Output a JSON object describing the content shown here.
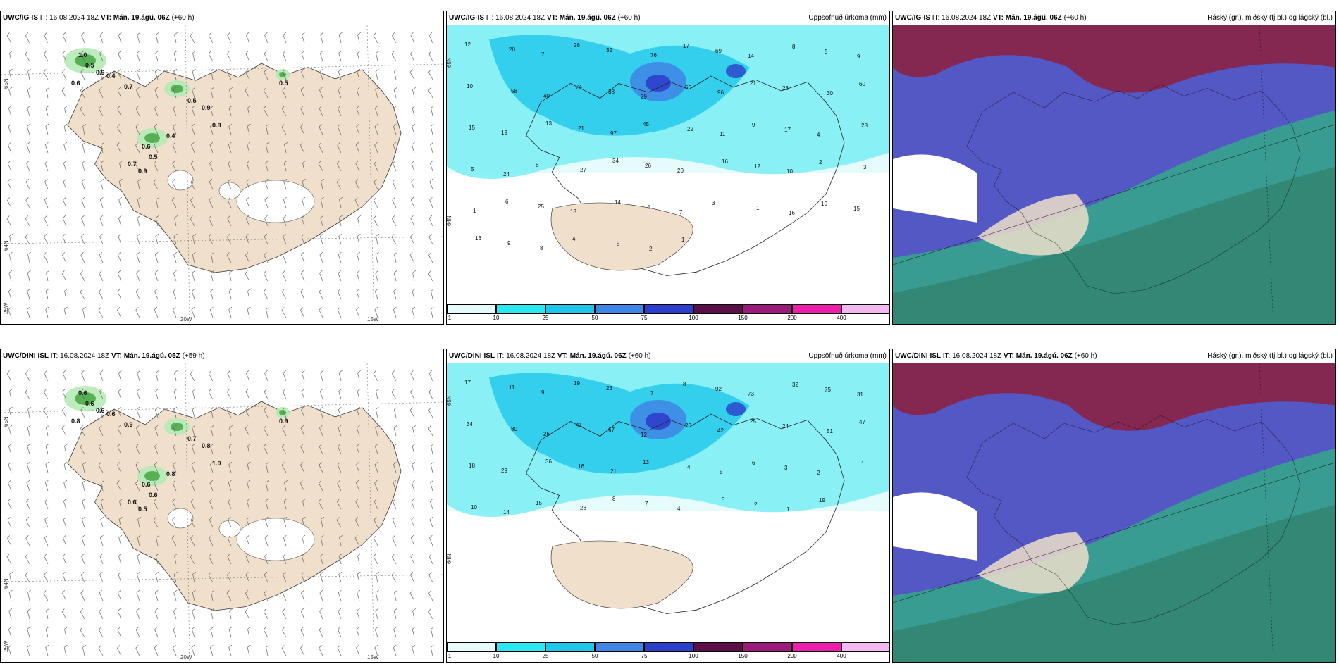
{
  "panels": [
    {
      "id": "top-left",
      "model": "UWC/IG-IS",
      "it_label": "IT:",
      "it_value": "16.08.2024 18Z",
      "vt_label": "VT:",
      "vt_value": "Mán. 19.ágú. 06Z",
      "lead": "(+60 h)",
      "right_title": "",
      "values": [
        "1.0",
        "0.5",
        "0.9",
        "0.6",
        "0.4",
        "0.7",
        "0.5",
        "0.9",
        "0.8",
        "0.6",
        "0.5",
        "0.4",
        "0.9",
        "0.7",
        "0.5"
      ],
      "lat_labels": [
        "65N",
        "64N",
        "25W"
      ],
      "lon_labels": [
        "20W",
        "15W"
      ]
    },
    {
      "id": "top-middle",
      "model": "UWC/IG-IS",
      "it_label": "IT:",
      "it_value": "16.08.2024 18Z",
      "vt_label": "VT:",
      "vt_value": "Mán. 19.ágú. 06Z",
      "lead": "(+60 h)",
      "right_title": "Uppsöfnuð úrkoma (mm)",
      "values": [
        "12",
        "20",
        "7",
        "28",
        "32",
        "76",
        "17",
        "69",
        "14",
        "8",
        "5",
        "9",
        "10",
        "58",
        "40",
        "74",
        "38",
        "29",
        "56",
        "96",
        "21",
        "23",
        "30",
        "60",
        "15",
        "19",
        "13",
        "21",
        "97",
        "45",
        "22",
        "11",
        "9",
        "17",
        "4",
        "28",
        "5",
        "24",
        "8",
        "27",
        "34",
        "26",
        "20",
        "16",
        "12",
        "10",
        "2",
        "3",
        "1",
        "6",
        "25",
        "18",
        "14",
        "4",
        "7",
        "3",
        "1",
        "16",
        "10",
        "15",
        "16",
        "9",
        "8",
        "4",
        "5",
        "2",
        "1"
      ],
      "lat_labels": [
        "65N",
        "64N"
      ],
      "colorbar": [
        "1",
        "10",
        "25",
        "50",
        "75",
        "100",
        "150",
        "200",
        "400"
      ]
    },
    {
      "id": "top-right",
      "model": "UWC/IG-IS",
      "it_label": "IT:",
      "it_value": "16.08.2024 18Z",
      "vt_label": "VT:",
      "vt_value": "Mán. 19.ágú. 06Z",
      "lead": "(+60 h)",
      "right_title": "Háský (gr.), miðský (fj.bl.) og lágský (bl.)"
    },
    {
      "id": "bottom-left",
      "model": "UWC/DINI ISL",
      "it_label": "IT:",
      "it_value": "16.08.2024 18Z",
      "vt_label": "VT:",
      "vt_value": "Mán. 19.ágú. 05Z",
      "lead": "(+59 h)",
      "right_title": "",
      "values": [
        "0.6",
        "0.6",
        "0.6",
        "0.8",
        "0.6",
        "0.9",
        "0.7",
        "0.8",
        "1.0",
        "0.6",
        "0.6",
        "0.8",
        "0.5",
        "0.6",
        "0.9"
      ],
      "lat_labels": [
        "65N",
        "64N",
        "25W"
      ],
      "lon_labels": [
        "20W",
        "15W"
      ]
    },
    {
      "id": "bottom-middle",
      "model": "UWC/DINI ISL",
      "it_label": "IT:",
      "it_value": "16.08.2024 18Z",
      "vt_label": "VT:",
      "vt_value": "Mán. 19.ágú. 06Z",
      "lead": "(+60 h)",
      "right_title": "Uppsöfnuð úrkoma (mm)",
      "values": [
        "17",
        "11",
        "9",
        "19",
        "23",
        "7",
        "8",
        "92",
        "73",
        "32",
        "75",
        "31",
        "34",
        "80",
        "26",
        "41",
        "67",
        "12",
        "20",
        "42",
        "25",
        "24",
        "51",
        "47",
        "18",
        "29",
        "36",
        "16",
        "21",
        "13",
        "4",
        "5",
        "6",
        "3",
        "2",
        "1",
        "10",
        "14",
        "15",
        "28",
        "8",
        "7",
        "4",
        "3",
        "2",
        "1",
        "19"
      ],
      "lat_labels": [
        "65N",
        "64N"
      ],
      "colorbar": [
        "1",
        "10",
        "25",
        "50",
        "75",
        "100",
        "150",
        "200",
        "400"
      ]
    },
    {
      "id": "bottom-right",
      "model": "UWC/DINI ISL",
      "it_label": "IT:",
      "it_value": "16.08.2024 18Z",
      "vt_label": "VT:",
      "vt_value": "Mán. 19.ágú. 06Z",
      "lead": "(+60 h)",
      "right_title": "Háský (gr.), miðský (fj.bl.) og lágský (bl.)"
    }
  ],
  "colors": {
    "land": "#efdfcb",
    "precip_scale": [
      "#e6fbfb",
      "#29e8f0",
      "#1ec7ea",
      "#3f87e6",
      "#2c3fcb",
      "#5a0f47",
      "#9c1b7a",
      "#ec1faa",
      "#f4b8f0"
    ],
    "cloud_high": "#8a2346",
    "cloud_mid": "#5458c4",
    "cloud_low": "#35a88a",
    "wet_green": "#3ca23c"
  }
}
